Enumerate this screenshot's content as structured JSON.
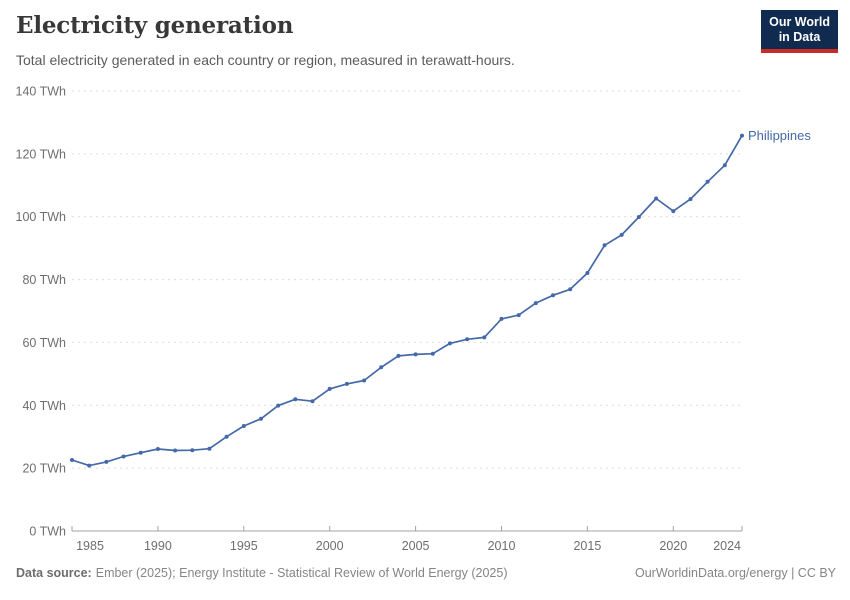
{
  "header": {
    "title": "Electricity generation",
    "subtitle": "Total electricity generated in each country or region, measured in terawatt-hours.",
    "logo": {
      "line1": "Our World",
      "line2": "in Data"
    }
  },
  "chart_data": {
    "type": "line",
    "title": "Electricity generation",
    "xlabel": "",
    "ylabel": "TWh",
    "xlim": [
      1985,
      2024
    ],
    "ylim": [
      0,
      140
    ],
    "grid": "horizontal-dashed",
    "legend_position": "end-of-line-label",
    "yticks": [
      0,
      20,
      40,
      60,
      80,
      100,
      120,
      140
    ],
    "ytick_label_suffix": " TWh",
    "xticks": [
      1985,
      1990,
      1995,
      2000,
      2005,
      2010,
      2015,
      2020,
      2024
    ],
    "series": [
      {
        "name": "Philippines",
        "color": "#4568a8",
        "x": [
          1985,
          1986,
          1987,
          1988,
          1989,
          1990,
          1991,
          1992,
          1993,
          1994,
          1995,
          1996,
          1997,
          1998,
          1999,
          2000,
          2001,
          2002,
          2003,
          2004,
          2005,
          2006,
          2007,
          2008,
          2009,
          2010,
          2011,
          2012,
          2013,
          2014,
          2015,
          2016,
          2017,
          2018,
          2019,
          2020,
          2021,
          2022,
          2023,
          2024
        ],
        "values": [
          22.6,
          20.8,
          22.0,
          23.7,
          24.9,
          26.1,
          25.6,
          25.7,
          26.2,
          30.0,
          33.4,
          35.7,
          39.9,
          41.9,
          41.3,
          45.2,
          46.8,
          47.9,
          52.1,
          55.7,
          56.2,
          56.4,
          59.7,
          61.0,
          61.6,
          67.5,
          68.7,
          72.5,
          75.0,
          76.9,
          82.1,
          90.9,
          94.2,
          99.9,
          105.8,
          101.8,
          105.6,
          111.1,
          116.4,
          125.8
        ]
      }
    ]
  },
  "footer": {
    "source_label": "Data source:",
    "source_text": "Ember (2025); Energy Institute - Statistical Review of World Energy (2025)",
    "rights": "OurWorldinData.org/energy | CC BY"
  },
  "colors": {
    "accent": "#4568a8",
    "grid": "#dcdcdc",
    "axis": "#a3a3a3",
    "text_muted": "#6e6e6e",
    "title": "#383838",
    "subtitle": "#5b5b5b",
    "footer": "#858585",
    "footer_label": "#6d6d6d",
    "logo_bg": "#102a50",
    "logo_accent": "#c72c26"
  }
}
